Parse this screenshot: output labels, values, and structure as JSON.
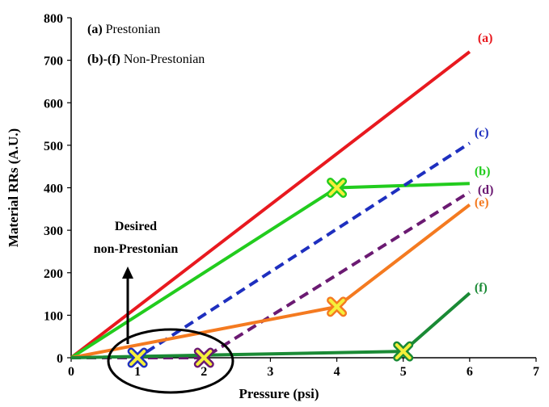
{
  "chart_data": {
    "type": "line",
    "xlabel": "Pressure (psi)",
    "ylabel": "Material RRs (A.U.)",
    "xlim": [
      0,
      7
    ],
    "ylim": [
      0,
      800
    ],
    "x_ticks": [
      "0",
      "1",
      "2",
      "3",
      "4",
      "5",
      "6",
      "7"
    ],
    "y_ticks": [
      "0",
      "100",
      "200",
      "300",
      "400",
      "500",
      "600",
      "700",
      "800"
    ],
    "grid": false,
    "legend_lines": [
      {
        "bold": "(a)",
        "text": " Prestonian"
      },
      {
        "bold": "(b)-(f)",
        "text": " Non-Prestonian"
      }
    ],
    "series": [
      {
        "name": "(a)",
        "color": "#e8191f",
        "dash": false,
        "x": [
          0,
          6
        ],
        "y": [
          0,
          720
        ],
        "markers": []
      },
      {
        "name": "(b)",
        "color": "#22cc1e",
        "dash": false,
        "x": [
          0,
          4,
          6
        ],
        "y": [
          0,
          400,
          410
        ],
        "markers": [
          4
        ]
      },
      {
        "name": "(c)",
        "color": "#1e2fbf",
        "dash": true,
        "x": [
          0,
          1,
          6
        ],
        "y": [
          0,
          0,
          505
        ],
        "markers": [
          1
        ]
      },
      {
        "name": "(d)",
        "color": "#6b1a72",
        "dash": true,
        "x": [
          0,
          2,
          6
        ],
        "y": [
          0,
          0,
          390
        ],
        "markers": [
          2
        ]
      },
      {
        "name": "(e)",
        "color": "#f47a20",
        "dash": false,
        "x": [
          0,
          4,
          6
        ],
        "y": [
          0,
          120,
          360
        ],
        "markers": [
          4
        ]
      },
      {
        "name": "(f)",
        "color": "#1a8a35",
        "dash": false,
        "x": [
          0,
          5,
          6
        ],
        "y": [
          0,
          15,
          152
        ],
        "markers": [
          5
        ]
      }
    ],
    "annotation": {
      "line1": "Desired",
      "line2": "non-Prestonian"
    }
  }
}
